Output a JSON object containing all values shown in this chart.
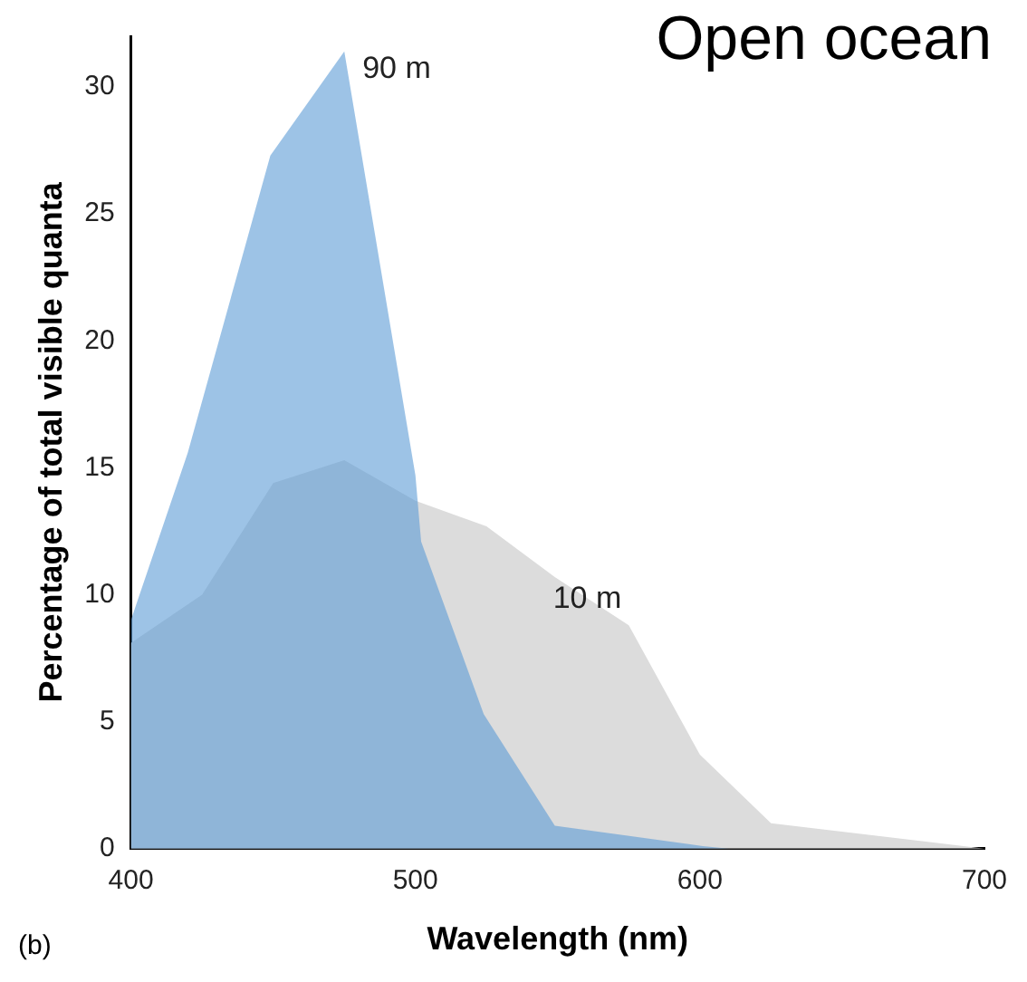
{
  "chart_data": {
    "type": "area",
    "title": "Open ocean",
    "xlabel": "Wavelength (nm)",
    "ylabel": "Percentage of total visible quanta",
    "annotations": [
      "(b)"
    ],
    "series": [
      {
        "name": "10 m",
        "color": "#dcdcdc",
        "x": [
          400,
          425,
          450,
          475,
          500,
          525,
          549,
          575,
          600,
          625,
          700
        ],
        "values": [
          8.1,
          10.0,
          14.4,
          15.3,
          13.7,
          12.7,
          10.7,
          8.8,
          3.7,
          1.0,
          0
        ]
      },
      {
        "name": "90 m",
        "color": "#5b9bd5",
        "x": [
          400,
          420,
          449,
          475,
          500,
          502,
          524,
          549,
          601,
          610
        ],
        "values": [
          9.0,
          15.6,
          27.3,
          31.4,
          14.7,
          12.1,
          5.3,
          0.9,
          0.1,
          0
        ]
      }
    ],
    "xlim": [
      400,
      700
    ],
    "xticks": [
      400,
      500,
      600,
      700
    ],
    "ylim": [
      0,
      32
    ],
    "yticks": [
      0,
      5,
      10,
      15,
      20,
      25,
      30
    ],
    "grid": false,
    "legend": false
  }
}
